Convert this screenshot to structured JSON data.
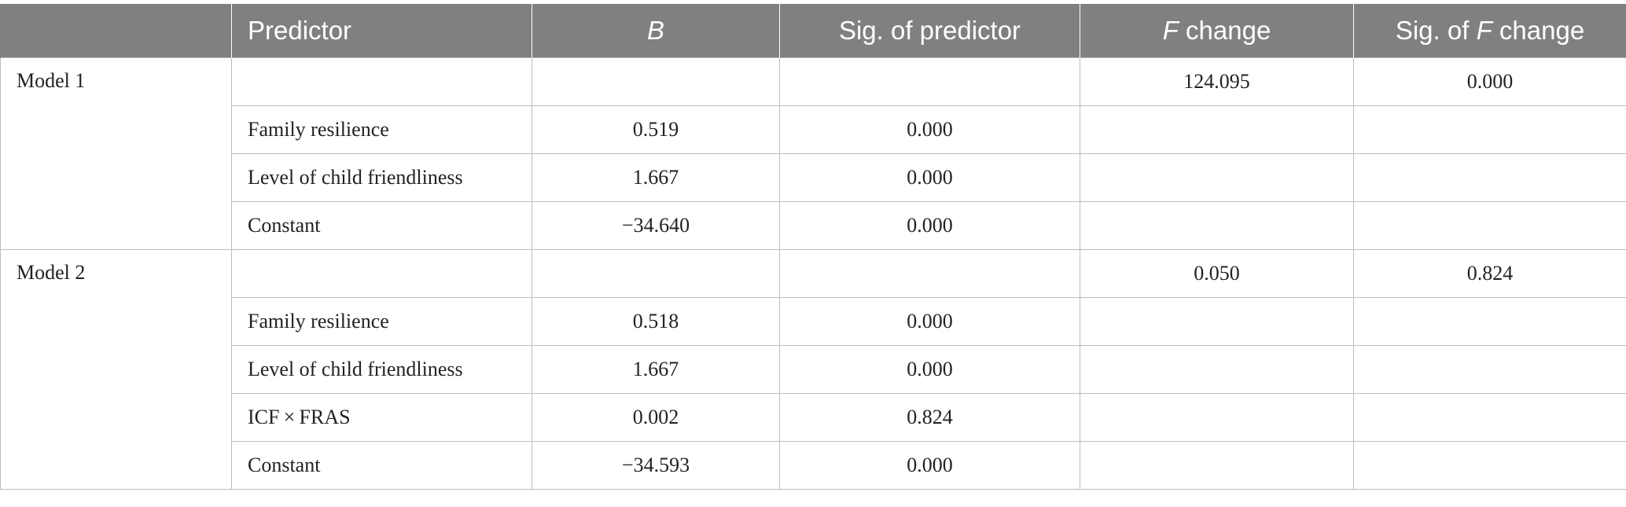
{
  "header": {
    "col0": "",
    "col1": "Predictor",
    "col2": "B",
    "col3": "Sig. of predictor",
    "col4_italic": "F",
    "col4_rest": " change",
    "col5_pre": "Sig. of ",
    "col5_italic": "F",
    "col5_rest": " change"
  },
  "models": [
    {
      "name": "Model 1",
      "f_change": "124.095",
      "sig_f_change": "0.000",
      "rows": [
        {
          "predictor": "Family resilience",
          "b": "0.519",
          "sig": "0.000"
        },
        {
          "predictor": "Level of child friendliness",
          "b": "1.667",
          "sig": "0.000"
        },
        {
          "predictor": "Constant",
          "b": "−34.640",
          "sig": "0.000"
        }
      ]
    },
    {
      "name": "Model 2",
      "f_change": "0.050",
      "sig_f_change": "0.824",
      "rows": [
        {
          "predictor": "Family resilience",
          "b": "0.518",
          "sig": "0.000"
        },
        {
          "predictor": "Level of child friendliness",
          "b": "1.667",
          "sig": "0.000"
        },
        {
          "predictor": "ICF × FRAS",
          "b": "0.002",
          "sig": "0.824"
        },
        {
          "predictor": "Constant",
          "b": "−34.593",
          "sig": "0.000"
        }
      ]
    }
  ]
}
